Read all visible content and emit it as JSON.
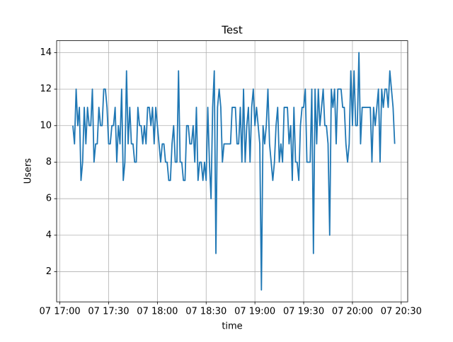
{
  "chart_data": {
    "type": "line",
    "title": "Test",
    "x_label": "time",
    "y_label": "Users",
    "color": "#1f77b4",
    "grid": true,
    "xlim": [
      "07 16:58",
      "07 20:34"
    ],
    "xticks": [
      "07 17:00",
      "07 17:30",
      "07 18:00",
      "07 18:30",
      "07 19:00",
      "07 19:30",
      "07 20:00",
      "07 20:30"
    ],
    "ylim": [
      0.35,
      14.65
    ],
    "yticks": [
      2,
      4,
      6,
      8,
      10,
      12,
      14
    ],
    "x": [
      "07 17:08",
      "07 17:09",
      "07 17:10",
      "07 17:11",
      "07 17:12",
      "07 17:13",
      "07 17:14",
      "07 17:15",
      "07 17:16",
      "07 17:17",
      "07 17:18",
      "07 17:19",
      "07 17:20",
      "07 17:21",
      "07 17:22",
      "07 17:23",
      "07 17:24",
      "07 17:25",
      "07 17:26",
      "07 17:27",
      "07 17:28",
      "07 17:29",
      "07 17:30",
      "07 17:31",
      "07 17:32",
      "07 17:33",
      "07 17:34",
      "07 17:35",
      "07 17:36",
      "07 17:37",
      "07 17:38",
      "07 17:39",
      "07 17:40",
      "07 17:41",
      "07 17:42",
      "07 17:43",
      "07 17:44",
      "07 17:45",
      "07 17:46",
      "07 17:47",
      "07 17:48",
      "07 17:49",
      "07 17:50",
      "07 17:51",
      "07 17:52",
      "07 17:53",
      "07 17:54",
      "07 17:55",
      "07 17:56",
      "07 17:57",
      "07 17:58",
      "07 17:59",
      "07 18:00",
      "07 18:01",
      "07 18:02",
      "07 18:03",
      "07 18:04",
      "07 18:05",
      "07 18:06",
      "07 18:07",
      "07 18:08",
      "07 18:09",
      "07 18:10",
      "07 18:11",
      "07 18:12",
      "07 18:13",
      "07 18:14",
      "07 18:15",
      "07 18:16",
      "07 18:17",
      "07 18:18",
      "07 18:19",
      "07 18:20",
      "07 18:21",
      "07 18:22",
      "07 18:23",
      "07 18:24",
      "07 18:25",
      "07 18:26",
      "07 18:27",
      "07 18:28",
      "07 18:29",
      "07 18:30",
      "07 18:31",
      "07 18:32",
      "07 18:33",
      "07 18:34",
      "07 18:35",
      "07 18:36",
      "07 18:37",
      "07 18:38",
      "07 18:39",
      "07 18:40",
      "07 18:41",
      "07 18:42",
      "07 18:43",
      "07 18:44",
      "07 18:45",
      "07 18:46",
      "07 18:47",
      "07 18:48",
      "07 18:49",
      "07 18:50",
      "07 18:51",
      "07 18:52",
      "07 18:53",
      "07 18:54",
      "07 18:55",
      "07 18:56",
      "07 18:57",
      "07 18:58",
      "07 18:59",
      "07 19:00",
      "07 19:01",
      "07 19:02",
      "07 19:03",
      "07 19:04",
      "07 19:05",
      "07 19:06",
      "07 19:07",
      "07 19:08",
      "07 19:09",
      "07 19:10",
      "07 19:11",
      "07 19:12",
      "07 19:13",
      "07 19:14",
      "07 19:15",
      "07 19:16",
      "07 19:17",
      "07 19:18",
      "07 19:19",
      "07 19:20",
      "07 19:21",
      "07 19:22",
      "07 19:23",
      "07 19:24",
      "07 19:25",
      "07 19:26",
      "07 19:27",
      "07 19:28",
      "07 19:29",
      "07 19:30",
      "07 19:31",
      "07 19:32",
      "07 19:33",
      "07 19:34",
      "07 19:35",
      "07 19:36",
      "07 19:37",
      "07 19:38",
      "07 19:39",
      "07 19:40",
      "07 19:41",
      "07 19:42",
      "07 19:43",
      "07 19:44",
      "07 19:45",
      "07 19:46",
      "07 19:47",
      "07 19:48",
      "07 19:49",
      "07 19:50",
      "07 19:51",
      "07 19:52",
      "07 19:53",
      "07 19:54",
      "07 19:55",
      "07 19:56",
      "07 19:57",
      "07 19:58",
      "07 19:59",
      "07 20:00",
      "07 20:01",
      "07 20:02",
      "07 20:03",
      "07 20:04",
      "07 20:05",
      "07 20:06",
      "07 20:07",
      "07 20:08",
      "07 20:09",
      "07 20:10",
      "07 20:11",
      "07 20:12",
      "07 20:13",
      "07 20:14",
      "07 20:15",
      "07 20:16",
      "07 20:17",
      "07 20:18",
      "07 20:19",
      "07 20:20",
      "07 20:21",
      "07 20:22",
      "07 20:23",
      "07 20:24",
      "07 20:25",
      "07 20:26"
    ],
    "values": [
      10,
      9,
      12,
      10,
      11,
      7,
      8,
      11,
      9,
      11,
      10,
      10,
      12,
      8,
      9,
      9,
      11,
      10,
      10,
      12,
      12,
      11,
      9,
      9,
      10,
      10,
      11,
      8,
      10,
      9,
      12,
      7,
      8,
      13,
      9,
      11,
      9,
      9,
      8,
      8,
      11,
      10,
      10,
      9,
      10,
      9,
      11,
      11,
      10,
      11,
      9,
      11,
      10,
      9,
      8,
      9,
      9,
      8,
      8,
      7,
      7,
      9,
      10,
      8,
      8,
      13,
      8,
      8,
      7,
      7,
      10,
      10,
      9,
      9,
      10,
      8,
      11,
      7,
      8,
      8,
      7,
      8,
      7,
      11,
      8,
      6,
      11,
      13,
      3,
      11,
      12,
      11,
      8,
      9,
      9,
      9,
      9,
      9,
      11,
      11,
      11,
      9,
      9,
      11,
      8,
      12,
      8,
      10,
      11,
      8,
      11,
      12,
      10,
      11,
      10,
      9,
      1,
      10,
      9,
      10,
      12,
      9,
      8,
      7,
      8,
      10,
      11,
      8,
      9,
      8,
      11,
      11,
      11,
      9,
      10,
      7,
      11,
      8,
      8,
      7,
      10,
      11,
      11,
      12,
      8,
      8,
      8,
      12,
      3,
      12,
      9,
      12,
      10,
      11,
      12,
      10,
      10,
      9,
      4,
      12,
      11,
      12,
      9,
      12,
      12,
      12,
      11,
      11,
      9,
      8,
      9,
      13,
      10,
      13,
      10,
      10,
      14,
      9,
      11,
      11,
      11,
      11,
      11,
      11,
      8,
      11,
      10,
      11,
      12,
      8,
      12,
      11,
      12,
      12,
      11,
      13,
      12,
      11,
      9
    ]
  }
}
